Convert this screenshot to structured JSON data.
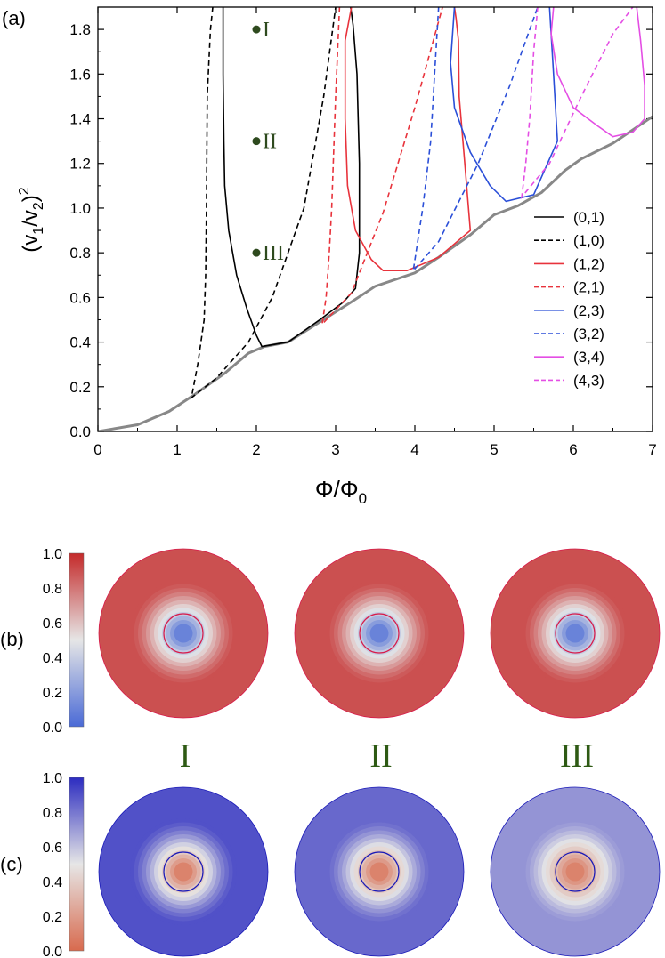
{
  "chart_data": [
    {
      "panel": "(a)",
      "type": "line",
      "xlabel": "Φ/Φ0",
      "ylabel": "(v1/v2)^2",
      "xlim": [
        0,
        7
      ],
      "ylim": [
        0.0,
        1.9
      ],
      "xticks": [
        "0",
        "1",
        "2",
        "3",
        "4",
        "5",
        "6",
        "7"
      ],
      "yticks": [
        "0.0",
        "0.2",
        "0.4",
        "0.6",
        "0.8",
        "1.0",
        "1.2",
        "1.4",
        "1.6",
        "1.8"
      ],
      "legend_position": "bottom-right",
      "markers": [
        {
          "label": "I",
          "x": 2.0,
          "y": 1.8
        },
        {
          "label": "II",
          "x": 2.0,
          "y": 1.3
        },
        {
          "label": "III",
          "x": 2.0,
          "y": 0.8
        }
      ],
      "boundary": {
        "name": "ground state",
        "color": "#888888",
        "x": [
          0,
          0.5,
          0.9,
          1.2,
          1.6,
          1.9,
          2.1,
          2.4,
          2.8,
          3.2,
          3.5,
          4.0,
          4.3,
          4.7,
          5.0,
          5.3,
          5.6,
          5.9,
          6.1,
          6.5,
          7.0
        ],
        "y": [
          0.0,
          0.03,
          0.09,
          0.16,
          0.26,
          0.35,
          0.38,
          0.4,
          0.49,
          0.58,
          0.65,
          0.71,
          0.78,
          0.88,
          0.97,
          1.01,
          1.07,
          1.17,
          1.22,
          1.29,
          1.41
        ]
      },
      "series": [
        {
          "name": "(0,1)",
          "color": "#000000",
          "dash": false,
          "x": [
            1.58,
            1.58,
            1.59,
            1.6,
            1.65,
            1.75,
            1.88,
            2.0,
            2.07,
            2.4,
            2.8,
            3.1,
            3.25,
            3.3,
            3.3,
            3.27,
            3.22,
            3.19
          ],
          "y": [
            1.9,
            1.6,
            1.3,
            1.1,
            0.9,
            0.7,
            0.55,
            0.43,
            0.38,
            0.4,
            0.5,
            0.58,
            0.64,
            0.8,
            1.2,
            1.6,
            1.82,
            1.9
          ]
        },
        {
          "name": "(1,0)",
          "color": "#000000",
          "dash": true,
          "x": [
            1.45,
            1.42,
            1.38,
            1.37,
            1.36,
            1.34,
            1.26,
            1.18,
            1.5,
            1.9,
            2.2,
            2.6,
            2.85,
            3.0
          ],
          "y": [
            1.9,
            1.8,
            1.5,
            1.0,
            0.7,
            0.5,
            0.3,
            0.15,
            0.24,
            0.4,
            0.6,
            1.0,
            1.5,
            1.9
          ]
        },
        {
          "name": "(1,2)",
          "color": "#e8333c",
          "dash": false,
          "x": [
            3.2,
            3.12,
            3.12,
            3.15,
            3.25,
            3.45,
            3.6,
            3.9,
            4.3,
            4.7,
            4.63,
            4.56,
            4.55,
            4.52,
            4.5
          ],
          "y": [
            1.9,
            1.75,
            1.4,
            1.1,
            0.9,
            0.77,
            0.72,
            0.72,
            0.78,
            0.9,
            1.2,
            1.5,
            1.75,
            1.85,
            1.9
          ]
        },
        {
          "name": "(2,1)",
          "color": "#e8333c",
          "dash": true,
          "x": [
            3.05,
            3.0,
            2.95,
            2.92,
            2.88,
            2.83,
            3.2,
            3.6,
            4.0,
            4.35
          ],
          "y": [
            1.9,
            1.5,
            1.0,
            0.8,
            0.6,
            0.48,
            0.62,
            0.98,
            1.45,
            1.9
          ]
        },
        {
          "name": "(2,3)",
          "color": "#2b4fd8",
          "dash": false,
          "x": [
            4.5,
            4.45,
            4.5,
            4.7,
            4.95,
            5.15,
            5.5,
            5.8,
            5.75,
            5.72,
            5.7
          ],
          "y": [
            1.9,
            1.65,
            1.45,
            1.25,
            1.1,
            1.03,
            1.06,
            1.3,
            1.6,
            1.78,
            1.9
          ]
        },
        {
          "name": "(3,2)",
          "color": "#2b4fd8",
          "dash": true,
          "x": [
            4.3,
            4.25,
            4.2,
            4.1,
            3.98,
            4.3,
            4.8,
            5.2,
            5.55
          ],
          "y": [
            1.9,
            1.6,
            1.3,
            1.0,
            0.72,
            0.85,
            1.2,
            1.55,
            1.9
          ]
        },
        {
          "name": "(3,4)",
          "color": "#e44ee4",
          "dash": false,
          "x": [
            5.75,
            5.72,
            5.8,
            6.0,
            6.3,
            6.5,
            6.75,
            6.9,
            6.9,
            6.85,
            6.8
          ],
          "y": [
            1.9,
            1.78,
            1.6,
            1.45,
            1.37,
            1.32,
            1.34,
            1.4,
            1.55,
            1.75,
            1.9
          ]
        },
        {
          "name": "(4,3)",
          "color": "#e44ee4",
          "dash": true,
          "x": [
            5.55,
            5.5,
            5.45,
            5.4,
            5.35,
            5.7,
            6.1,
            6.5,
            6.75
          ],
          "y": [
            1.9,
            1.7,
            1.4,
            1.2,
            1.05,
            1.2,
            1.5,
            1.78,
            1.9
          ]
        }
      ]
    },
    {
      "panel": "(b)",
      "type": "heatmap",
      "colorbar": {
        "ticks": [
          "0.0",
          "0.2",
          "0.4",
          "0.6",
          "0.8",
          "1.0"
        ],
        "range": [
          0.0,
          1.0
        ],
        "low_color": "#4a6ad6",
        "high_color": "#c42a2a"
      },
      "columns": [
        "I",
        "II",
        "III"
      ],
      "outer_level": [
        0.9,
        0.9,
        0.9
      ],
      "core_level": 0.1,
      "contour_color": "#d81b4a"
    },
    {
      "panel": "(c)",
      "type": "heatmap",
      "colorbar": {
        "ticks": [
          "0.0",
          "0.2",
          "0.4",
          "0.6",
          "0.8",
          "1.0"
        ],
        "range": [
          0.0,
          1.0
        ],
        "low_color": "#d86a4e",
        "high_color": "#2c2cc0"
      },
      "columns": [
        "I",
        "II",
        "III"
      ],
      "outer_level": [
        0.9,
        0.84,
        0.72
      ],
      "core_level": 0.1,
      "contour_color": "#1a1ab8"
    }
  ]
}
